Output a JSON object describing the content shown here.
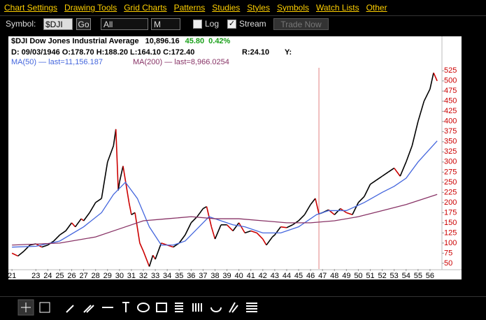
{
  "menu": [
    "Chart Settings",
    "Drawing Tools",
    "Grid Charts",
    "Patterns",
    "Studies",
    "Styles",
    "Symbols",
    "Watch Lists",
    "Other"
  ],
  "toolbar": {
    "symbol_label": "Symbol:",
    "symbol": "$DJI",
    "go": "Go",
    "range": "All",
    "period": "M",
    "log": "Log",
    "stream": "Stream",
    "trade": "Trade Now"
  },
  "header": {
    "symbol": "$DJI",
    "name": "Dow Jones Industrial Average",
    "last": "10,896.16",
    "change": "45.80",
    "change_pct": "0.42%",
    "bar": "D: 09/03/1946 O:178.70 H:188.20 L:164.10 C:172.40",
    "range": "R:24.10",
    "y": "Y:",
    "ma50": "MA(50) — last=11,156.187",
    "ma200": "MA(200) — last=8,966.0254"
  },
  "chart_data": {
    "type": "line",
    "xlim": [
      1920.7,
      1957.0
    ],
    "ylim": [
      36,
      610
    ],
    "crosshair": 1946.7,
    "xticks": [
      {
        "value": 1921,
        "label": "21"
      },
      {
        "value": 1923,
        "label": "23"
      },
      {
        "value": 1924,
        "label": "24"
      },
      {
        "value": 1925,
        "label": "25"
      },
      {
        "value": 1926,
        "label": "26"
      },
      {
        "value": 1927,
        "label": "27"
      },
      {
        "value": 1928,
        "label": "28"
      },
      {
        "value": 1929,
        "label": "29"
      },
      {
        "value": 1930,
        "label": "30"
      },
      {
        "value": 1931,
        "label": "31"
      },
      {
        "value": 1932,
        "label": "32"
      },
      {
        "value": 1933,
        "label": "33"
      },
      {
        "value": 1934,
        "label": "34"
      },
      {
        "value": 1935,
        "label": "35"
      },
      {
        "value": 1936,
        "label": "36"
      },
      {
        "value": 1937,
        "label": "37"
      },
      {
        "value": 1938,
        "label": "38"
      },
      {
        "value": 1939,
        "label": "39"
      },
      {
        "value": 1940,
        "label": "40"
      },
      {
        "value": 1941,
        "label": "41"
      },
      {
        "value": 1942,
        "label": "42"
      },
      {
        "value": 1943,
        "label": "43"
      },
      {
        "value": 1944,
        "label": "44"
      },
      {
        "value": 1945,
        "label": "45"
      },
      {
        "value": 1946,
        "label": "46"
      },
      {
        "value": 1947,
        "label": "47"
      },
      {
        "value": 1948,
        "label": "48"
      },
      {
        "value": 1949,
        "label": "49"
      },
      {
        "value": 1950,
        "label": "50"
      },
      {
        "value": 1951,
        "label": "51"
      },
      {
        "value": 1952,
        "label": "52"
      },
      {
        "value": 1953,
        "label": "53"
      },
      {
        "value": 1954,
        "label": "54"
      },
      {
        "value": 1955,
        "label": "55"
      },
      {
        "value": 1956,
        "label": "56"
      }
    ],
    "yticks": [
      50,
      75,
      100,
      125,
      150,
      175,
      200,
      225,
      250,
      275,
      300,
      325,
      350,
      375,
      400,
      425,
      450,
      475,
      500,
      525
    ],
    "series": [
      {
        "name": "$DJI",
        "color": "#000000",
        "down_color": "#cc0000",
        "x": [
          1921.0,
          1921.5,
          1922,
          1922.5,
          1923,
          1923.5,
          1924,
          1924.5,
          1925,
          1925.5,
          1926,
          1926.3,
          1926.8,
          1927,
          1927.5,
          1928,
          1928.5,
          1929,
          1929.5,
          1929.7,
          1929.9,
          1930.0,
          1930.3,
          1930.8,
          1931,
          1931.3,
          1931.7,
          1932,
          1932.5,
          1932.8,
          1933,
          1933.5,
          1934,
          1934.5,
          1935,
          1935.5,
          1936,
          1936.5,
          1937,
          1937.3,
          1937.7,
          1938,
          1938.5,
          1939,
          1939.5,
          1940,
          1940.5,
          1941,
          1941.5,
          1942,
          1942.3,
          1942.8,
          1943,
          1943.5,
          1944,
          1944.5,
          1945,
          1945.5,
          1946,
          1946.4,
          1946.7,
          1947,
          1947.5,
          1948,
          1948.5,
          1949,
          1949.5,
          1950,
          1950.5,
          1951,
          1951.5,
          1952,
          1952.5,
          1953,
          1953.5,
          1954,
          1954.5,
          1955,
          1955.5,
          1956,
          1956.3,
          1956.6
        ],
        "values": [
          75,
          68,
          80,
          95,
          98,
          90,
          95,
          105,
          120,
          130,
          150,
          140,
          160,
          155,
          175,
          200,
          210,
          300,
          340,
          381,
          230,
          250,
          290,
          200,
          170,
          175,
          100,
          80,
          42,
          70,
          60,
          100,
          95,
          90,
          100,
          120,
          150,
          165,
          185,
          190,
          140,
          110,
          145,
          145,
          130,
          150,
          125,
          130,
          125,
          110,
          95,
          115,
          120,
          140,
          138,
          145,
          155,
          170,
          195,
          210,
          172,
          175,
          182,
          170,
          185,
          175,
          170,
          200,
          215,
          245,
          255,
          265,
          275,
          285,
          265,
          300,
          340,
          400,
          450,
          480,
          520,
          500
        ]
      },
      {
        "name": "MA(50)",
        "color": "#4466dd",
        "x": [
          1921,
          1923,
          1925,
          1927,
          1928.5,
          1929.5,
          1930.5,
          1931.5,
          1932.5,
          1933.5,
          1934.5,
          1935.5,
          1936.5,
          1937.5,
          1938.5,
          1939.5,
          1940.5,
          1942,
          1943.5,
          1945,
          1946.5,
          1947.5,
          1949,
          1950.5,
          1952,
          1953,
          1954,
          1955,
          1956.6
        ],
        "values": [
          90,
          92,
          105,
          140,
          175,
          220,
          250,
          210,
          140,
          95,
          95,
          105,
          135,
          165,
          155,
          145,
          140,
          125,
          125,
          140,
          170,
          180,
          180,
          200,
          225,
          240,
          260,
          300,
          352
        ]
      },
      {
        "name": "MA(200)",
        "color": "#883366",
        "x": [
          1921,
          1925,
          1928,
          1930,
          1932,
          1934,
          1936,
          1938,
          1940,
          1942,
          1944,
          1946,
          1948,
          1950,
          1952,
          1954,
          1956.6
        ],
        "values": [
          95,
          100,
          115,
          135,
          155,
          160,
          165,
          160,
          160,
          155,
          150,
          150,
          155,
          165,
          180,
          195,
          220
        ]
      }
    ]
  }
}
